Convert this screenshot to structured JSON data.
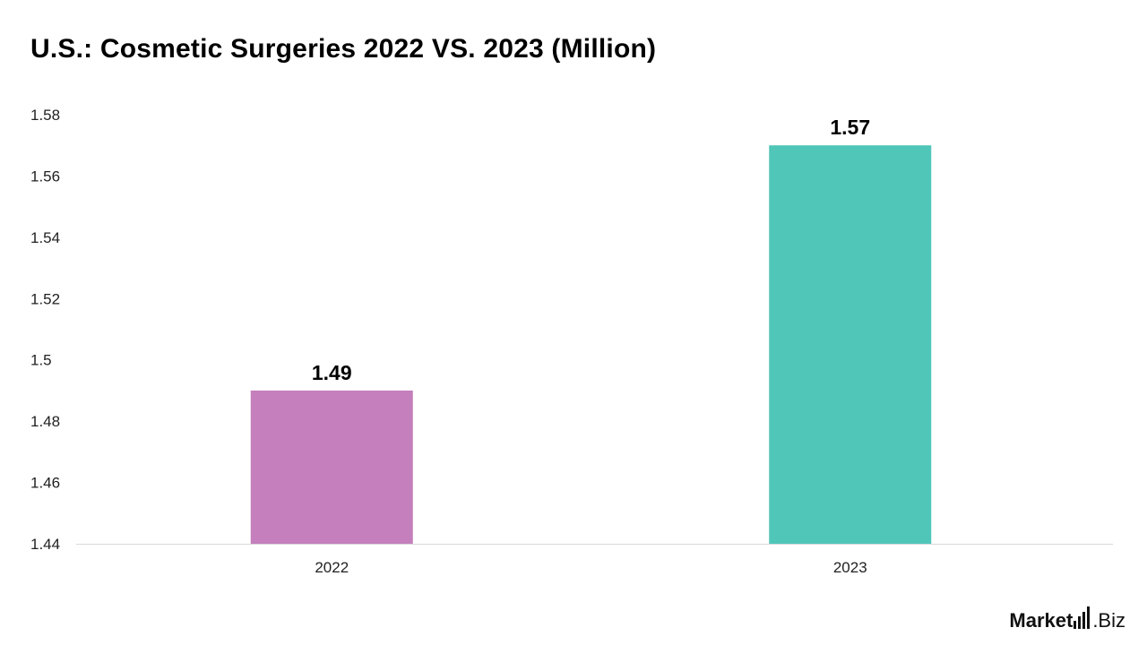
{
  "chart_data": {
    "type": "bar",
    "title": "U.S.: Cosmetic Surgeries 2022 VS. 2023 (Million)",
    "categories": [
      "2022",
      "2023"
    ],
    "values": [
      1.49,
      1.57
    ],
    "data_labels": [
      "1.49",
      "1.57"
    ],
    "colors": [
      "#c47fbc",
      "#50c6b9"
    ],
    "ylim": [
      1.44,
      1.58
    ],
    "yticks": [
      1.44,
      1.46,
      1.48,
      1.5,
      1.52,
      1.54,
      1.56,
      1.58
    ],
    "ytick_labels": [
      "1.44",
      "1.46",
      "1.48",
      "1.5",
      "1.52",
      "1.54",
      "1.56",
      "1.58"
    ],
    "grid": false,
    "legend": "none"
  },
  "branding": {
    "logo_main": "Market",
    "logo_dot_suffix": ".Biz"
  }
}
